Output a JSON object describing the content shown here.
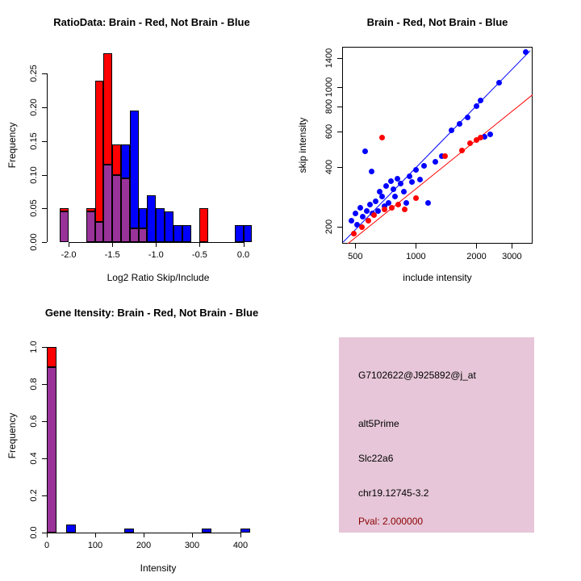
{
  "figure": {
    "background": "#ffffff",
    "colors": {
      "red": "#ff0000",
      "blue": "#0000ff",
      "overlap": "#993399",
      "axis": "#000000",
      "box_fill": "#e6c6d8",
      "pval": "#8b0000",
      "text": "#000000"
    }
  },
  "chart_data": [
    {
      "type": "bar",
      "panel": "top-left",
      "title": "RatioData: Brain - Red, Not Brain - Blue",
      "xlabel": "Log2 Ratio Skip/Include",
      "ylabel": "Frequency",
      "xlim": [
        -2.25,
        0.3
      ],
      "ylim": [
        0,
        0.29
      ],
      "grid": false,
      "bin_width": 0.1,
      "xticks": {
        "values": [
          -2.0,
          -1.5,
          -1.0,
          -0.5,
          0.0
        ],
        "labels": [
          "-2.0",
          "-1.5",
          "-1.0",
          "-0.5",
          "0.0"
        ]
      },
      "yticks": {
        "values": [
          0.0,
          0.05,
          0.1,
          0.15,
          0.2,
          0.25
        ],
        "labels": [
          "0.00",
          "0.05",
          "0.10",
          "0.15",
          "0.20",
          "0.25"
        ]
      },
      "series_legend": [
        {
          "name": "Brain",
          "color_key": "red"
        },
        {
          "name": "Not Brain",
          "color_key": "blue"
        }
      ],
      "bins": [
        {
          "x": -2.1,
          "red": 0.05,
          "blue": 0.045
        },
        {
          "x": -1.8,
          "red": 0.05,
          "blue": 0.045
        },
        {
          "x": -1.7,
          "red": 0.24,
          "blue": 0.03
        },
        {
          "x": -1.6,
          "red": 0.28,
          "blue": 0.115
        },
        {
          "x": -1.5,
          "red": 0.145,
          "blue": 0.1
        },
        {
          "x": -1.4,
          "red": 0.095,
          "blue": 0.145
        },
        {
          "x": -1.3,
          "red": 0.02,
          "blue": 0.195
        },
        {
          "x": -1.2,
          "red": 0.02,
          "blue": 0.05
        },
        {
          "x": -1.1,
          "red": 0.0,
          "blue": 0.07
        },
        {
          "x": -1.0,
          "red": 0.0,
          "blue": 0.05
        },
        {
          "x": -0.9,
          "red": 0.0,
          "blue": 0.045
        },
        {
          "x": -0.8,
          "red": 0.0,
          "blue": 0.025
        },
        {
          "x": -0.7,
          "red": 0.0,
          "blue": 0.025
        },
        {
          "x": -0.5,
          "red": 0.05,
          "blue": 0.0
        },
        {
          "x": -0.1,
          "red": 0.0,
          "blue": 0.025
        },
        {
          "x": 0.0,
          "red": 0.0,
          "blue": 0.025
        }
      ]
    },
    {
      "type": "scatter",
      "panel": "top-right",
      "title": "Brain - Red, Not Brain - Blue",
      "xlabel": "include intensity",
      "ylabel": "skip intensity",
      "xlog": true,
      "ylog": true,
      "xlim": [
        430,
        3800
      ],
      "ylim": [
        165,
        1600
      ],
      "grid": false,
      "xticks": {
        "values": [
          500,
          1000,
          2000,
          3000
        ],
        "labels": [
          "500",
          "1000",
          "2000",
          "3000"
        ]
      },
      "yticks": {
        "values": [
          200,
          400,
          600,
          800,
          1000,
          1400
        ],
        "labels": [
          "200",
          "400",
          "600",
          "800",
          "1000",
          "1400"
        ]
      },
      "series": [
        {
          "name": "Not Brain",
          "color_key": "blue",
          "points": [
            [
              480,
              215
            ],
            [
              500,
              235
            ],
            [
              510,
              205
            ],
            [
              530,
              250
            ],
            [
              545,
              225
            ],
            [
              560,
              480
            ],
            [
              570,
              240
            ],
            [
              590,
              260
            ],
            [
              600,
              380
            ],
            [
              610,
              235
            ],
            [
              630,
              270
            ],
            [
              650,
              240
            ],
            [
              660,
              300
            ],
            [
              680,
              285
            ],
            [
              700,
              255
            ],
            [
              710,
              320
            ],
            [
              730,
              265
            ],
            [
              750,
              340
            ],
            [
              770,
              310
            ],
            [
              790,
              285
            ],
            [
              810,
              350
            ],
            [
              840,
              330
            ],
            [
              870,
              300
            ],
            [
              900,
              265
            ],
            [
              930,
              360
            ],
            [
              960,
              335
            ],
            [
              1000,
              385
            ],
            [
              1050,
              345
            ],
            [
              1100,
              405
            ],
            [
              1150,
              265
            ],
            [
              1250,
              425
            ],
            [
              1350,
              455
            ],
            [
              1500,
              610
            ],
            [
              1650,
              660
            ],
            [
              1800,
              710
            ],
            [
              2000,
              810
            ],
            [
              2100,
              860
            ],
            [
              2200,
              565
            ],
            [
              2350,
              585
            ],
            [
              2600,
              1060
            ],
            [
              3500,
              1500
            ]
          ]
        },
        {
          "name": "Brain",
          "color_key": "red",
          "points": [
            [
              490,
              185
            ],
            [
              540,
              200
            ],
            [
              580,
              215
            ],
            [
              620,
              230
            ],
            [
              680,
              560
            ],
            [
              700,
              245
            ],
            [
              760,
              250
            ],
            [
              820,
              260
            ],
            [
              880,
              245
            ],
            [
              1000,
              280
            ],
            [
              1400,
              455
            ],
            [
              1700,
              485
            ],
            [
              1850,
              525
            ],
            [
              2000,
              545
            ],
            [
              2100,
              560
            ]
          ]
        }
      ],
      "lines": [
        {
          "name": "not-brain-fit",
          "color_key": "blue",
          "from": [
            435,
            168
          ],
          "to": [
            3700,
            1530
          ]
        },
        {
          "name": "brain-fit",
          "color_key": "red",
          "from": [
            435,
            158
          ],
          "to": [
            3800,
            920
          ]
        }
      ]
    },
    {
      "type": "bar",
      "panel": "bottom-left",
      "title": "Gene Itensity: Brain - Red, Not Brain - Blue",
      "xlabel": "Intensity",
      "ylabel": "Frequency",
      "xlim": [
        0,
        460
      ],
      "ylim": [
        0,
        1.05
      ],
      "grid": false,
      "bin_width": 20,
      "xticks": {
        "values": [
          0,
          100,
          200,
          300,
          400
        ],
        "labels": [
          "0",
          "100",
          "200",
          "300",
          "400"
        ]
      },
      "yticks": {
        "values": [
          0.0,
          0.2,
          0.4,
          0.6,
          0.8,
          1.0
        ],
        "labels": [
          "0.0",
          "0.2",
          "0.4",
          "0.6",
          "0.8",
          "1.0"
        ]
      },
      "series_legend": [
        {
          "name": "Brain",
          "color_key": "red"
        },
        {
          "name": "Not Brain",
          "color_key": "blue"
        }
      ],
      "bins": [
        {
          "x": 0,
          "red": 1.0,
          "blue": 0.89
        },
        {
          "x": 40,
          "red": 0.0,
          "blue": 0.045
        },
        {
          "x": 160,
          "red": 0.0,
          "blue": 0.02
        },
        {
          "x": 320,
          "red": 0.0,
          "blue": 0.02
        },
        {
          "x": 400,
          "red": 0.0,
          "blue": 0.02
        }
      ]
    }
  ],
  "info_panel": {
    "lines": [
      {
        "text": "G7102622@J925892@j_at",
        "emphasis": "normal"
      },
      {
        "text": "alt5Prime",
        "emphasis": "normal"
      },
      {
        "text": "Slc22a6",
        "emphasis": "normal"
      },
      {
        "text": "chr19.12745-3.2",
        "emphasis": "normal"
      },
      {
        "text": "Pval: 2.000000",
        "emphasis": "pval"
      }
    ]
  }
}
